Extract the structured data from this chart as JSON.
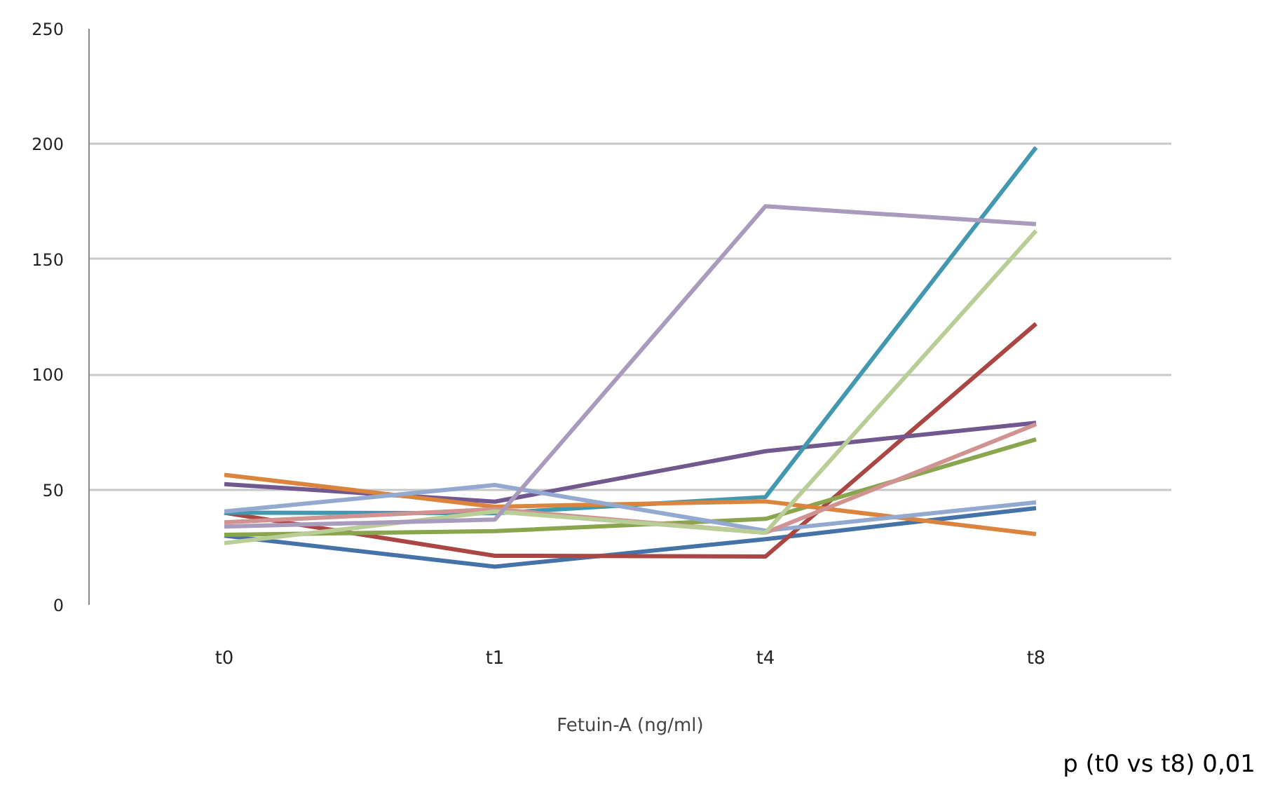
{
  "chart_data": {
    "type": "line",
    "xlabel": "Fetuin-A (ng/ml)",
    "annotations": [
      "p (t0 vs t8) 0,01"
    ],
    "categories": [
      "t0",
      "t1",
      "t4",
      "t8"
    ],
    "ylim": [
      0,
      250
    ],
    "yticks": [
      0,
      50,
      100,
      150,
      200,
      250
    ],
    "grid": "y",
    "marker": "none",
    "line_style": "solid",
    "series": [
      {
        "color": "#4572a7",
        "values": [
          30,
          16.6,
          28.5,
          42
        ]
      },
      {
        "color": "#aa4643",
        "values": [
          40,
          21.3,
          21,
          122
        ]
      },
      {
        "color": "#89a54e",
        "values": [
          30.4,
          32,
          37.3,
          71.8
        ]
      },
      {
        "color": "#71588f",
        "values": [
          52.4,
          44.8,
          66.7,
          79
        ]
      },
      {
        "color": "#4198af",
        "values": [
          40,
          39.8,
          46.8,
          198.5
        ]
      },
      {
        "color": "#db843d",
        "values": [
          56.4,
          42.6,
          44.9,
          30.7
        ]
      },
      {
        "color": "#93a9cf",
        "values": [
          40.5,
          52,
          32.2,
          44.5
        ]
      },
      {
        "color": "#d19392",
        "values": [
          35.8,
          41.5,
          31.3,
          78.4
        ]
      },
      {
        "color": "#b9cd96",
        "values": [
          26.8,
          40.5,
          31.3,
          162.3
        ]
      },
      {
        "color": "#a99bbd",
        "values": [
          34,
          37,
          173,
          165.2
        ]
      }
    ]
  }
}
